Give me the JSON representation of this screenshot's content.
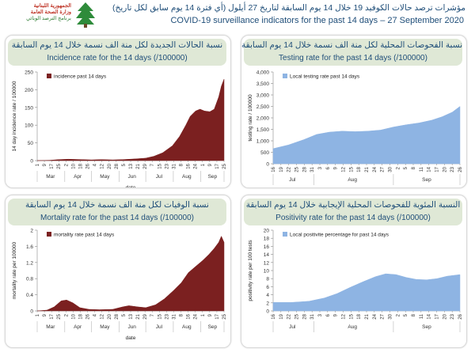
{
  "header": {
    "logo_line1": "الجمهورية اللبنانية",
    "logo_line2": "وزارة الصحة العامة",
    "logo_line3": "برنامج الترصد الوبائي",
    "title_arabic": "مؤشرات ترصد حالات الكوفيد 19 خلال 14 يوم السابقة لتاريخ 27 أيلول (أي فترة 14 يوم سابق لكل تاريخ)",
    "title_english": "COVID-19 surveillance indicators for the past 14 days – 27 September 2020"
  },
  "colors": {
    "incidence": "#7b2020",
    "mortality": "#7b2020",
    "testing": "#8eb4e3",
    "positivity": "#8eb4e3"
  },
  "chart_data": [
    {
      "type": "area",
      "panel_title_ar": "نسبة الحالات الجديدة لكل منة الف نسمة خلال 14 يوم السابقة",
      "panel_title_en": "Incidence rate for the 14 days  (/100000)",
      "xlabel": "date",
      "ylabel": "14 day incidence rate / 100000",
      "ylim": [
        0,
        250
      ],
      "yticks": [
        "0",
        "50",
        "100",
        "150",
        "200",
        "250"
      ],
      "legend": "incidence past 14 days",
      "legend_position": "top-left",
      "x_day_labels": [
        "1",
        "9",
        "17",
        "25",
        "2",
        "10",
        "18",
        "26",
        "4",
        "12",
        "20",
        "28",
        "5",
        "13",
        "21",
        "29",
        "7",
        "15",
        "23",
        "31",
        "8",
        "16",
        "24",
        "1",
        "9",
        "17",
        "25"
      ],
      "month_labels": [
        "Mar",
        "Apr",
        "May",
        "Jun",
        "Jul",
        "Aug",
        "Sep"
      ],
      "x_start": "2020-03-01",
      "x_end": "2020-09-27",
      "series": [
        {
          "name": "incidence past 14 days",
          "points": [
            [
              "2020-03-01",
              0
            ],
            [
              "2020-03-15",
              1
            ],
            [
              "2020-03-25",
              3
            ],
            [
              "2020-04-05",
              4
            ],
            [
              "2020-04-20",
              3
            ],
            [
              "2020-05-01",
              2
            ],
            [
              "2020-05-12",
              3
            ],
            [
              "2020-05-25",
              2
            ],
            [
              "2020-06-05",
              3
            ],
            [
              "2020-06-20",
              5
            ],
            [
              "2020-07-01",
              7
            ],
            [
              "2020-07-10",
              12
            ],
            [
              "2020-07-20",
              22
            ],
            [
              "2020-07-31",
              42
            ],
            [
              "2020-08-08",
              68
            ],
            [
              "2020-08-15",
              100
            ],
            [
              "2020-08-20",
              125
            ],
            [
              "2020-08-26",
              140
            ],
            [
              "2020-08-31",
              145
            ],
            [
              "2020-09-05",
              140
            ],
            [
              "2020-09-11",
              138
            ],
            [
              "2020-09-16",
              145
            ],
            [
              "2020-09-21",
              180
            ],
            [
              "2020-09-24",
              210
            ],
            [
              "2020-09-27",
              230
            ]
          ]
        }
      ]
    },
    {
      "type": "area",
      "panel_title_ar": "نسبة الفحوصات المحلية لكل منة الف نسمة خلال 14 يوم السابقة",
      "panel_title_en": "Testing rate for the past 14 days (/100000)",
      "xlabel": "date",
      "ylabel": "testing rate / 100000",
      "ylim": [
        0,
        4000
      ],
      "yticks": [
        "0",
        "500",
        "1,000",
        "1,500",
        "2,000",
        "2,500",
        "3,000",
        "3,500",
        "4,000"
      ],
      "legend": "Local testing rate past 14 days",
      "legend_position": "top-left",
      "x_day_labels": [
        "16",
        "19",
        "22",
        "25",
        "28",
        "31",
        "3",
        "6",
        "9",
        "12",
        "15",
        "18",
        "21",
        "24",
        "27",
        "30",
        "2",
        "5",
        "8",
        "11",
        "14",
        "17",
        "20",
        "23",
        "26"
      ],
      "month_labels": [
        "Jul",
        "Aug",
        "Sep"
      ],
      "x_start": "2020-07-16",
      "x_end": "2020-09-27",
      "series": [
        {
          "name": "Local testing rate past 14 days",
          "points": [
            [
              "2020-07-16",
              660
            ],
            [
              "2020-07-22",
              820
            ],
            [
              "2020-07-28",
              1050
            ],
            [
              "2020-08-02",
              1280
            ],
            [
              "2020-08-07",
              1380
            ],
            [
              "2020-08-12",
              1420
            ],
            [
              "2020-08-17",
              1400
            ],
            [
              "2020-08-22",
              1420
            ],
            [
              "2020-08-27",
              1470
            ],
            [
              "2020-09-01",
              1600
            ],
            [
              "2020-09-06",
              1700
            ],
            [
              "2020-09-11",
              1780
            ],
            [
              "2020-09-16",
              1900
            ],
            [
              "2020-09-20",
              2050
            ],
            [
              "2020-09-24",
              2250
            ],
            [
              "2020-09-27",
              2500
            ]
          ]
        }
      ]
    },
    {
      "type": "area",
      "panel_title_ar": "نسبة الوفيات لكل منة الف نسمة خلال 14 يوم السابقة",
      "panel_title_en": "Mortality rate for the past 14 days (/100000)",
      "xlabel": "date",
      "ylabel": "mortality rate per 100000",
      "ylim": [
        0,
        2
      ],
      "yticks": [
        "0",
        "0.4",
        "0.8",
        "1.2",
        "1.6",
        "2"
      ],
      "legend": "mortality rate past 14 days",
      "legend_position": "top-left",
      "x_day_labels": [
        "1",
        "9",
        "17",
        "25",
        "2",
        "10",
        "18",
        "26",
        "4",
        "12",
        "20",
        "28",
        "5",
        "13",
        "21",
        "29",
        "7",
        "15",
        "23",
        "31",
        "8",
        "16",
        "24",
        "1",
        "9",
        "17",
        "25"
      ],
      "month_labels": [
        "Mar",
        "Apr",
        "May",
        "Jun",
        "Jul",
        "Aug",
        "Sep"
      ],
      "x_start": "2020-03-01",
      "x_end": "2020-09-27",
      "series": [
        {
          "name": "mortality rate past 14 days",
          "points": [
            [
              "2020-03-01",
              0
            ],
            [
              "2020-03-12",
              0.02
            ],
            [
              "2020-03-20",
              0.1
            ],
            [
              "2020-03-28",
              0.25
            ],
            [
              "2020-04-03",
              0.27
            ],
            [
              "2020-04-10",
              0.2
            ],
            [
              "2020-04-18",
              0.08
            ],
            [
              "2020-04-28",
              0.04
            ],
            [
              "2020-05-10",
              0.03
            ],
            [
              "2020-05-25",
              0.04
            ],
            [
              "2020-06-05",
              0.1
            ],
            [
              "2020-06-12",
              0.13
            ],
            [
              "2020-06-22",
              0.1
            ],
            [
              "2020-07-01",
              0.08
            ],
            [
              "2020-07-12",
              0.15
            ],
            [
              "2020-07-22",
              0.3
            ],
            [
              "2020-08-01",
              0.5
            ],
            [
              "2020-08-10",
              0.7
            ],
            [
              "2020-08-18",
              0.95
            ],
            [
              "2020-08-26",
              1.1
            ],
            [
              "2020-09-03",
              1.25
            ],
            [
              "2020-09-10",
              1.4
            ],
            [
              "2020-09-16",
              1.55
            ],
            [
              "2020-09-21",
              1.7
            ],
            [
              "2020-09-24",
              1.85
            ],
            [
              "2020-09-27",
              1.7
            ]
          ]
        }
      ]
    },
    {
      "type": "area",
      "panel_title_ar": "النسبة المئوية للفحوصات المحلية الإيجابية خلال 14 يوم السابقة",
      "panel_title_en": "Positivity rate for the past 14 days (/100000)",
      "xlabel": "",
      "ylabel": "positivity rate per 100 tests",
      "ylim": [
        0,
        20
      ],
      "yticks": [
        "0",
        "2",
        "4",
        "6",
        "8",
        "10",
        "12",
        "14",
        "16",
        "18",
        "20"
      ],
      "legend": "Local positivite percentage for past 14 days",
      "legend_position": "top-left",
      "x_day_labels": [
        "16",
        "19",
        "22",
        "25",
        "28",
        "31",
        "3",
        "6",
        "9",
        "12",
        "15",
        "18",
        "21",
        "24",
        "27",
        "30",
        "2",
        "5",
        "8",
        "11",
        "14",
        "17",
        "20",
        "23",
        "26"
      ],
      "month_labels": [
        "Jul",
        "Aug",
        "Sep"
      ],
      "x_start": "2020-07-16",
      "x_end": "2020-09-27",
      "series": [
        {
          "name": "Local positivite percentage for past 14 days",
          "points": [
            [
              "2020-07-16",
              2.1
            ],
            [
              "2020-07-23",
              2.1
            ],
            [
              "2020-07-30",
              2.4
            ],
            [
              "2020-08-05",
              3.2
            ],
            [
              "2020-08-10",
              4.3
            ],
            [
              "2020-08-15",
              5.8
            ],
            [
              "2020-08-20",
              7.2
            ],
            [
              "2020-08-25",
              8.5
            ],
            [
              "2020-08-29",
              9.2
            ],
            [
              "2020-09-02",
              9.0
            ],
            [
              "2020-09-06",
              8.3
            ],
            [
              "2020-09-10",
              7.8
            ],
            [
              "2020-09-14",
              7.7
            ],
            [
              "2020-09-18",
              8.0
            ],
            [
              "2020-09-22",
              8.6
            ],
            [
              "2020-09-27",
              9.0
            ]
          ]
        }
      ]
    }
  ]
}
